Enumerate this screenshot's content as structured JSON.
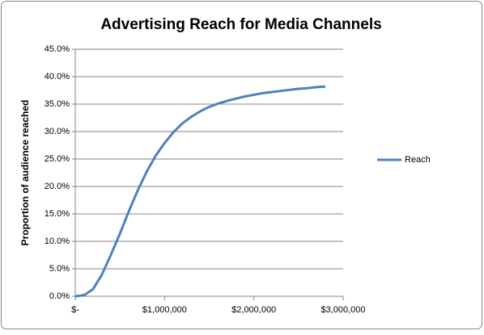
{
  "chart_data": {
    "type": "line",
    "title": "Advertising Reach for Media Channels",
    "y_label": "Proportion of audience reached",
    "x": [
      0,
      100000,
      200000,
      300000,
      400000,
      500000,
      600000,
      700000,
      800000,
      900000,
      1000000,
      1100000,
      1200000,
      1300000,
      1400000,
      1500000,
      1600000,
      1700000,
      1800000,
      1900000,
      2000000,
      2100000,
      2200000,
      2300000,
      2400000,
      2500000,
      2600000,
      2700000,
      2800000
    ],
    "series": [
      {
        "name": "Reach",
        "color": "#4f81bd",
        "values": [
          0,
          0.2,
          1.3,
          4.0,
          7.6,
          11.4,
          15.5,
          19.3,
          22.7,
          25.6,
          27.9,
          29.9,
          31.5,
          32.7,
          33.7,
          34.5,
          35.1,
          35.6,
          36.0,
          36.4,
          36.7,
          37.0,
          37.2,
          37.4,
          37.6,
          37.8,
          37.9,
          38.1,
          38.2
        ]
      }
    ],
    "xlim": [
      0,
      3000000
    ],
    "xticks": [
      {
        "value": 0,
        "label": "$-"
      },
      {
        "value": 1000000,
        "label": "$1,000,000"
      },
      {
        "value": 2000000,
        "label": "$2,000,000"
      },
      {
        "value": 3000000,
        "label": "$3,000,000"
      }
    ],
    "ylim": [
      0,
      45
    ],
    "yticks": [
      {
        "value": 0,
        "label": "0.0%"
      },
      {
        "value": 5,
        "label": "5.0%"
      },
      {
        "value": 10,
        "label": "10.0%"
      },
      {
        "value": 15,
        "label": "15.0%"
      },
      {
        "value": 20,
        "label": "20.0%"
      },
      {
        "value": 25,
        "label": "25.0%"
      },
      {
        "value": 30,
        "label": "30.0%"
      },
      {
        "value": 35,
        "label": "35.0%"
      },
      {
        "value": 40,
        "label": "40.0%"
      },
      {
        "value": 45,
        "label": "45.0%"
      }
    ],
    "grid": true,
    "legend": "right"
  }
}
